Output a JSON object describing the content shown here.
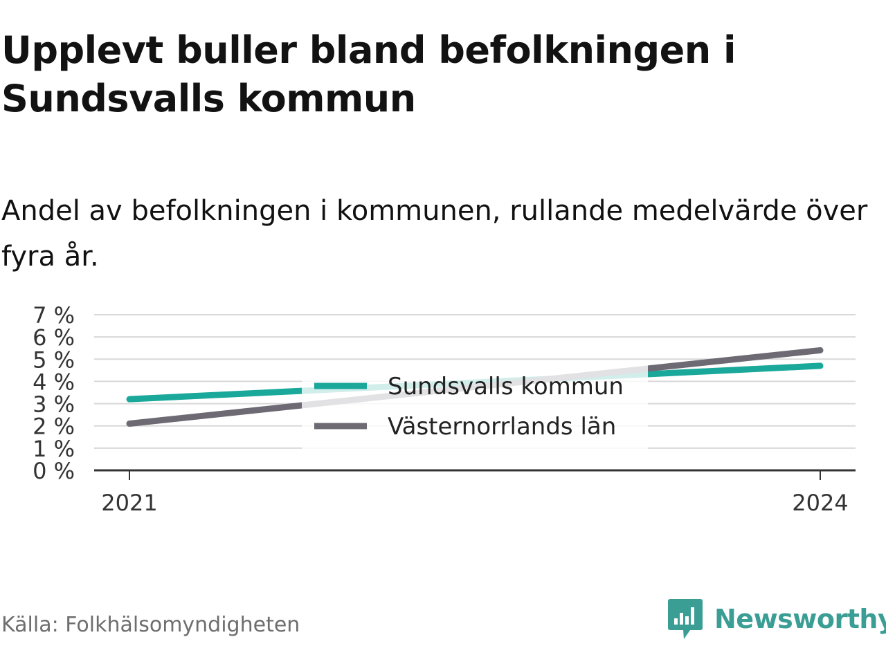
{
  "title": "Upplevt buller bland befolkningen i Sundsvalls kommun",
  "subtitle": "Andel av befolkningen i kommunen, rullande medelvärde över fyra år.",
  "source": "Källa: Folkhälsomyndigheten",
  "brand": "Newsworthy",
  "icons": {
    "brand": "newsworthy-logo-icon"
  },
  "colors": {
    "sundsvall": "#1aa89b",
    "vasternorrland": "#6d6a73",
    "grid": "#d8d8d8",
    "axis": "#333333",
    "brand": "#3a9e94"
  },
  "chart_data": {
    "type": "line",
    "title": "",
    "xlabel": "",
    "ylabel": "",
    "x": [
      2021,
      2024
    ],
    "x_tick_labels": [
      "2021",
      "2024"
    ],
    "y_ticks": [
      0,
      1,
      2,
      3,
      4,
      5,
      6,
      7
    ],
    "y_tick_labels": [
      "0 %",
      "1 %",
      "2 %",
      "3 %",
      "4 %",
      "5 %",
      "6 %",
      "7 %"
    ],
    "ylim": [
      0,
      7
    ],
    "grid": true,
    "legend_position": "center",
    "series": [
      {
        "name": "Sundsvalls kommun",
        "values": [
          3.2,
          4.7
        ]
      },
      {
        "name": "Västernorrlands län",
        "values": [
          2.1,
          5.4
        ]
      }
    ]
  }
}
